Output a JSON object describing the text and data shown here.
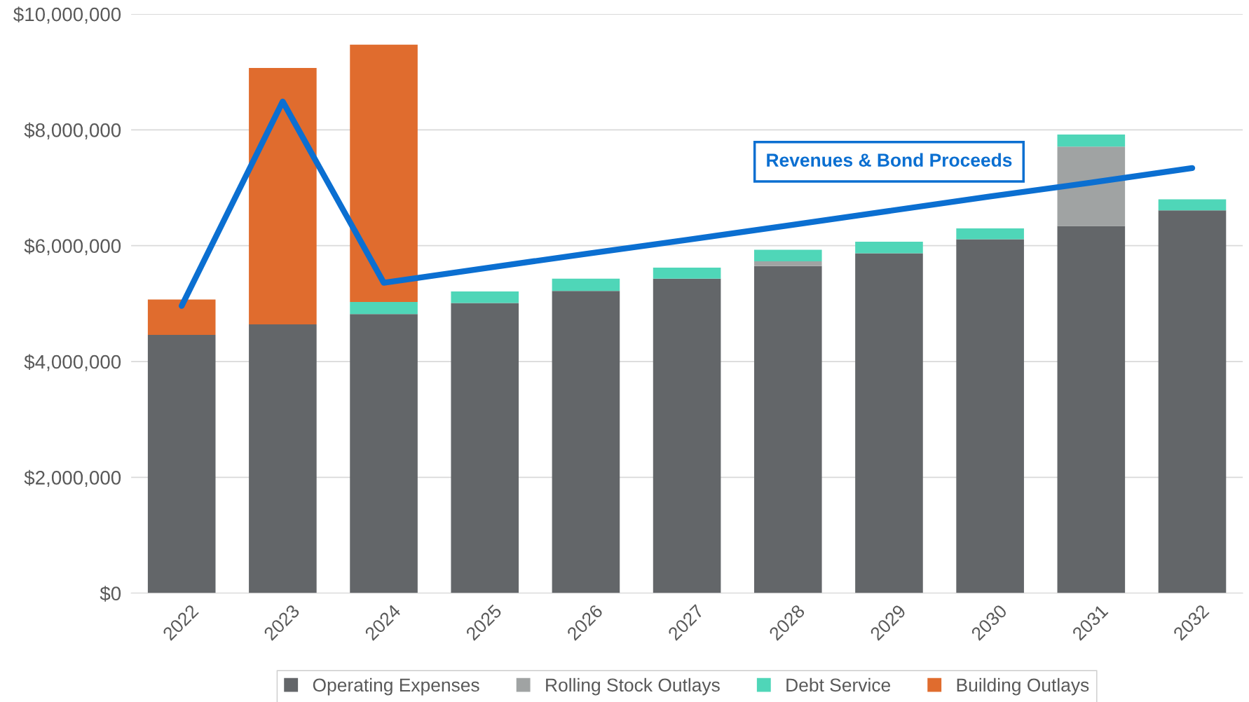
{
  "chart_data": {
    "type": "bar",
    "stacked": true,
    "categories": [
      "2022",
      "2023",
      "2024",
      "2025",
      "2026",
      "2027",
      "2028",
      "2029",
      "2030",
      "2031",
      "2032"
    ],
    "series": [
      {
        "name": "Operating Expenses",
        "color": "#636669",
        "values": [
          4460000,
          4640000,
          4820000,
          5010000,
          5220000,
          5430000,
          5650000,
          5870000,
          6110000,
          6340000,
          6610000
        ]
      },
      {
        "name": "Rolling Stock Outlays",
        "color": "#a0a3a3",
        "values": [
          0,
          0,
          0,
          0,
          0,
          0,
          80000,
          0,
          0,
          1370000,
          0
        ]
      },
      {
        "name": "Debt Service",
        "color": "#4fd6b8",
        "values": [
          0,
          0,
          210000,
          200000,
          210000,
          190000,
          200000,
          200000,
          190000,
          210000,
          190000
        ]
      },
      {
        "name": "Building Outlays",
        "color": "#e06c2e",
        "values": [
          610000,
          4430000,
          4440000,
          0,
          0,
          0,
          0,
          0,
          0,
          0,
          0
        ]
      },
      {
        "name": "Revenues & Bond Proceeds",
        "type": "line",
        "color": "#0b6fd1",
        "values": [
          4960000,
          8490000,
          5360000,
          5610000,
          5860000,
          6100000,
          6350000,
          6600000,
          6850000,
          7090000,
          7340000
        ]
      }
    ],
    "ylim": [
      0,
      10000000
    ],
    "yticks": [
      {
        "value": 0,
        "label": "$0"
      },
      {
        "value": 2000000,
        "label": "$2,000,000"
      },
      {
        "value": 4000000,
        "label": "$4,000,000"
      },
      {
        "value": 6000000,
        "label": "$6,000,000"
      },
      {
        "value": 8000000,
        "label": "$8,000,000"
      },
      {
        "value": 10000000,
        "label": "$10,000,000"
      }
    ],
    "grid": "y",
    "legend": "bottom"
  }
}
